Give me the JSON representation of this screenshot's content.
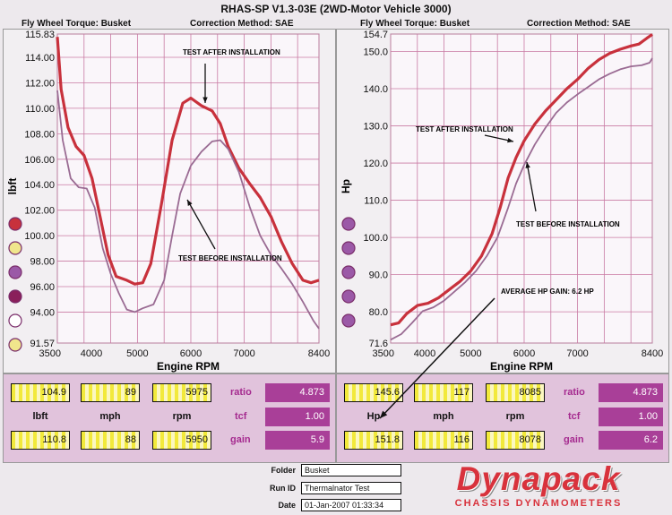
{
  "app": {
    "title": "RHAS-SP V1.3-03E (2WD-Motor Vehicle 3000)"
  },
  "left_header": {
    "fly_wheel": "Fly Wheel Torque: Busket",
    "correction": "Correction Method: SAE"
  },
  "right_header": {
    "fly_wheel": "Fly Wheel Torque: Busket",
    "correction": "Correction Method: SAE"
  },
  "colors": {
    "after": "#c8313c",
    "before": "#9a6b93",
    "grid": "#c97aa3",
    "purple": "#a93f98"
  },
  "legend_dots": [
    "#c8313c",
    "#f0e68c",
    "#9b59a7",
    "#8a1f5b",
    "#ffffff",
    "#f0e68c"
  ],
  "chart_data": [
    {
      "type": "line",
      "xlabel": "Engine RPM",
      "ylabel": "lbft",
      "xlim": [
        3500,
        8400
      ],
      "ylim": [
        91.57,
        115.83
      ],
      "x_ticks": [
        "3500",
        "4000",
        "5000",
        "6000",
        "7000",
        "8400"
      ],
      "x_tick_values": [
        3500,
        4000,
        5000,
        6000,
        7000,
        8400
      ],
      "y_ticks": [
        "115.83",
        "114.00",
        "112.00",
        "110.00",
        "108.00",
        "106.00",
        "104.00",
        "102.00",
        "100.00",
        "98.00",
        "96.00",
        "94.00",
        "91.57"
      ],
      "y_tick_values": [
        115.83,
        114,
        112,
        110,
        108,
        106,
        104,
        102,
        100,
        98,
        96,
        94,
        91.57
      ],
      "annotations": {
        "after": "TEST AFTER INSTALLATION",
        "before": "TEST BEFORE INSTALLATION"
      },
      "series": [
        {
          "key": "after",
          "points": [
            [
              3500,
              115.6
            ],
            [
              3570,
              111.5
            ],
            [
              3700,
              108.5
            ],
            [
              3850,
              107
            ],
            [
              4000,
              106.3
            ],
            [
              4150,
              104.5
            ],
            [
              4300,
              101.5
            ],
            [
              4450,
              98.5
            ],
            [
              4600,
              96.8
            ],
            [
              4800,
              96.5
            ],
            [
              4950,
              96.2
            ],
            [
              5100,
              96.3
            ],
            [
              5250,
              97.8
            ],
            [
              5450,
              102.5
            ],
            [
              5650,
              107.5
            ],
            [
              5850,
              110.4
            ],
            [
              6000,
              110.8
            ],
            [
              6200,
              110.2
            ],
            [
              6400,
              109.8
            ],
            [
              6550,
              108.8
            ],
            [
              6700,
              107
            ],
            [
              6900,
              105.3
            ],
            [
              7100,
              104.1
            ],
            [
              7300,
              103
            ],
            [
              7500,
              101.5
            ],
            [
              7700,
              99.5
            ],
            [
              7900,
              97.8
            ],
            [
              8100,
              96.5
            ],
            [
              8250,
              96.3
            ],
            [
              8400,
              96.5
            ]
          ]
        },
        {
          "key": "before",
          "points": [
            [
              3500,
              111.4
            ],
            [
              3600,
              107.5
            ],
            [
              3750,
              104.5
            ],
            [
              3900,
              103.8
            ],
            [
              4050,
              103.7
            ],
            [
              4200,
              102.2
            ],
            [
              4350,
              99
            ],
            [
              4500,
              97
            ],
            [
              4650,
              95.5
            ],
            [
              4800,
              94.2
            ],
            [
              4950,
              94
            ],
            [
              5100,
              94.3
            ],
            [
              5300,
              94.6
            ],
            [
              5500,
              96.5
            ],
            [
              5650,
              100
            ],
            [
              5800,
              103.3
            ],
            [
              6000,
              105.5
            ],
            [
              6200,
              106.6
            ],
            [
              6400,
              107.4
            ],
            [
              6550,
              107.5
            ],
            [
              6700,
              106.8
            ],
            [
              6900,
              105
            ],
            [
              7100,
              102.3
            ],
            [
              7300,
              100
            ],
            [
              7500,
              98.5
            ],
            [
              7700,
              97.4
            ],
            [
              7900,
              96.2
            ],
            [
              8100,
              94.8
            ],
            [
              8300,
              93.3
            ],
            [
              8400,
              92.7
            ]
          ]
        }
      ]
    },
    {
      "type": "line",
      "xlabel": "Engine RPM",
      "ylabel": "Hp",
      "xlim": [
        3500,
        8400
      ],
      "ylim": [
        71.6,
        154.7
      ],
      "x_ticks": [
        "3500",
        "4000",
        "5000",
        "6000",
        "7000",
        "8400"
      ],
      "x_tick_values": [
        3500,
        4000,
        5000,
        6000,
        7000,
        8400
      ],
      "y_ticks": [
        "154.7",
        "150.0",
        "140.0",
        "130.0",
        "120.0",
        "110.0",
        "100.0",
        "90.0",
        "80.0",
        "71.6"
      ],
      "y_tick_values": [
        154.7,
        150,
        140,
        130,
        120,
        110,
        100,
        90,
        80,
        71.6
      ],
      "annotations": {
        "after": "TEST AFTER INSTALLATION",
        "before": "TEST BEFORE INSTALLATION",
        "gain": "AVERAGE HP GAIN: 6.2 HP"
      },
      "series": [
        {
          "key": "after",
          "points": [
            [
              3500,
              76.5
            ],
            [
              3650,
              77
            ],
            [
              3800,
              79.5
            ],
            [
              4000,
              81.7
            ],
            [
              4200,
              82.3
            ],
            [
              4400,
              83.8
            ],
            [
              4600,
              86
            ],
            [
              4800,
              88.2
            ],
            [
              5000,
              91
            ],
            [
              5200,
              95
            ],
            [
              5400,
              101
            ],
            [
              5550,
              108
            ],
            [
              5700,
              116
            ],
            [
              5850,
              121.5
            ],
            [
              6000,
              126
            ],
            [
              6200,
              130.5
            ],
            [
              6400,
              134
            ],
            [
              6600,
              137
            ],
            [
              6800,
              140
            ],
            [
              7000,
              142.5
            ],
            [
              7200,
              145.5
            ],
            [
              7400,
              147.8
            ],
            [
              7600,
              149.5
            ],
            [
              7800,
              150.6
            ],
            [
              8000,
              151.5
            ],
            [
              8150,
              152
            ],
            [
              8300,
              153.6
            ],
            [
              8400,
              154.6
            ]
          ]
        },
        {
          "key": "before",
          "points": [
            [
              3500,
              72.5
            ],
            [
              3700,
              74
            ],
            [
              3900,
              77
            ],
            [
              4100,
              80.2
            ],
            [
              4300,
              81.2
            ],
            [
              4500,
              83
            ],
            [
              4700,
              85.5
            ],
            [
              4900,
              88
            ],
            [
              5100,
              91
            ],
            [
              5300,
              95
            ],
            [
              5500,
              100
            ],
            [
              5700,
              108
            ],
            [
              5850,
              114.5
            ],
            [
              6000,
              119.5
            ],
            [
              6200,
              125
            ],
            [
              6400,
              129.5
            ],
            [
              6600,
              133.5
            ],
            [
              6800,
              136.3
            ],
            [
              7000,
              138.5
            ],
            [
              7200,
              140.5
            ],
            [
              7400,
              142.5
            ],
            [
              7600,
              144
            ],
            [
              7800,
              145.2
            ],
            [
              8000,
              146
            ],
            [
              8200,
              146.3
            ],
            [
              8350,
              147
            ],
            [
              8400,
              148.2
            ]
          ]
        }
      ]
    }
  ],
  "left_stats": {
    "row1": [
      "104.9",
      "89",
      "5975"
    ],
    "labels": [
      "lbft",
      "mph",
      "rpm"
    ],
    "row2": [
      "110.8",
      "88",
      "5950"
    ],
    "ratio_label": "ratio",
    "ratio": "4.873",
    "tcf_label": "tcf",
    "tcf": "1.00",
    "gain_label": "gain",
    "gain": "5.9"
  },
  "right_stats": {
    "row1": [
      "145.6",
      "117",
      "8085"
    ],
    "labels": [
      "Hp",
      "mph",
      "rpm"
    ],
    "row2": [
      "151.8",
      "116",
      "8078"
    ],
    "ratio_label": "ratio",
    "ratio": "4.873",
    "tcf_label": "tcf",
    "tcf": "1.00",
    "gain_label": "gain",
    "gain": "6.2"
  },
  "info": {
    "folder_label": "Folder",
    "folder": "Busket",
    "runid_label": "Run ID",
    "runid": "Thermalnator Test",
    "date_label": "Date",
    "date": "01-Jan-2007 01:33:34"
  },
  "logo": {
    "main": "Dynapack",
    "sub": "CHASSIS DYNAMOMETERS"
  }
}
